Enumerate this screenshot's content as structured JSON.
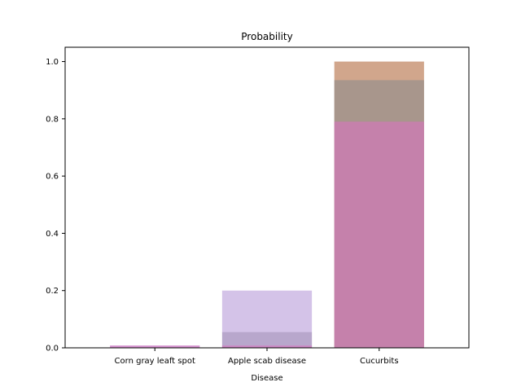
{
  "chart_data": {
    "type": "bar",
    "title": "Probability",
    "xlabel": "Disease",
    "ylabel": "",
    "categories": [
      "Corn gray leaft spot",
      "Apple scab disease",
      "Cucurbits"
    ],
    "ylim": [
      0,
      1.05
    ],
    "yticks": [
      "0.0",
      "0.2",
      "0.4",
      "0.6",
      "0.8",
      "1.0"
    ],
    "grid": false,
    "series": [
      {
        "color": "#b26b3f",
        "values": [
          0.0,
          0.0,
          1.0
        ]
      },
      {
        "color": "#8c8c8c",
        "values": [
          0.0,
          0.055,
          0.935
        ]
      },
      {
        "color": "#b79bd8",
        "values": [
          0.008,
          0.2,
          0.0
        ]
      },
      {
        "color": "#d873c0",
        "values": [
          0.008,
          0.008,
          0.79
        ]
      }
    ]
  }
}
